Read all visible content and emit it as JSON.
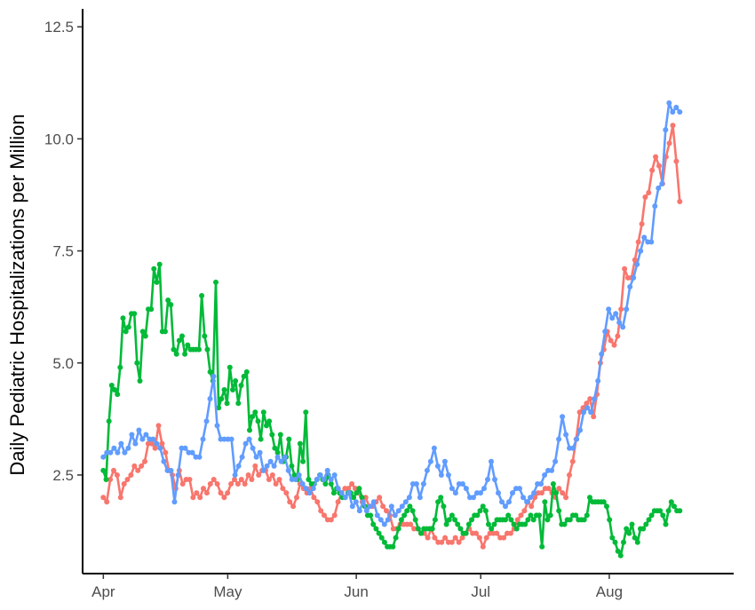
{
  "chart_data": {
    "type": "line",
    "title": "",
    "xlabel": "",
    "ylabel": "Daily Pediatric Hospitalizations per Million",
    "ylim": [
      0.3,
      12.9
    ],
    "y_ticks": [
      2.5,
      5.0,
      7.5,
      10.0,
      12.5
    ],
    "y_tick_labels": [
      "2.5",
      "5.0",
      "7.5",
      "10.0",
      "12.5"
    ],
    "x_ticks": [
      "2021-04-01",
      "2021-05-01",
      "2021-06-01",
      "2021-07-01",
      "2021-08-01"
    ],
    "x_tick_labels": [
      "Apr",
      "May",
      "Jun",
      "Jul",
      "Aug"
    ],
    "xlim": [
      "2021-03-27",
      "2021-08-31"
    ],
    "grid": false,
    "legend": "none",
    "start_date": "2021-04-01",
    "series": [
      {
        "color": "#F8766D",
        "values": [
          2.0,
          1.9,
          2.4,
          2.6,
          2.5,
          2.0,
          2.3,
          2.4,
          2.5,
          2.7,
          2.6,
          2.7,
          2.8,
          3.2,
          3.2,
          3.1,
          3.6,
          3.2,
          3.0,
          2.6,
          2.5,
          2.2,
          2.6,
          2.3,
          2.4,
          2.4,
          2.0,
          2.1,
          2.0,
          2.2,
          2.1,
          2.3,
          2.4,
          2.3,
          2.1,
          2.0,
          2.1,
          2.3,
          2.4,
          2.3,
          2.4,
          2.3,
          2.5,
          2.4,
          2.7,
          2.5,
          2.6,
          2.6,
          2.4,
          2.5,
          2.3,
          2.4,
          2.2,
          2.1,
          1.9,
          1.8,
          2.0,
          2.3,
          2.2,
          2.1,
          2.2,
          2.0,
          1.9,
          1.7,
          1.6,
          1.5,
          1.5,
          1.6,
          1.9,
          2.1,
          2.2,
          2.2,
          2.3,
          2.2,
          2.1,
          1.9,
          2.0,
          1.8,
          1.8,
          1.9,
          2.0,
          1.8,
          1.7,
          1.6,
          1.3,
          1.3,
          1.4,
          1.4,
          1.4,
          1.4,
          1.3,
          1.3,
          1.2,
          1.2,
          1.1,
          1.3,
          1.1,
          1.0,
          1.0,
          1.1,
          1.0,
          1.0,
          1.1,
          1.0,
          1.1,
          1.2,
          1.3,
          1.2,
          1.2,
          1.1,
          0.9,
          1.1,
          1.2,
          1.2,
          1.2,
          1.1,
          1.1,
          1.2,
          1.2,
          1.3,
          1.5,
          1.6,
          1.7,
          1.9,
          1.8,
          2.0,
          2.1,
          2.1,
          2.2,
          2.2,
          2.1,
          2.0,
          2.2,
          2.1,
          2.0,
          2.5,
          2.8,
          3.3,
          3.9,
          4.0,
          4.1,
          4.2,
          3.8,
          4.3,
          5.0,
          5.3,
          5.7,
          5.5,
          5.4,
          5.6,
          6.2,
          7.1,
          6.9,
          6.9,
          7.3,
          7.7,
          8.1,
          8.7,
          8.8,
          9.3,
          9.6,
          9.4,
          9.0,
          9.6,
          9.9,
          10.3,
          9.5,
          8.6
        ]
      },
      {
        "color": "#00BA38",
        "values": [
          2.6,
          2.4,
          3.7,
          4.5,
          4.4,
          4.3,
          4.9,
          6.0,
          5.7,
          5.8,
          6.1,
          6.1,
          5.0,
          4.6,
          5.7,
          5.6,
          6.2,
          6.2,
          7.1,
          6.8,
          7.2,
          5.7,
          5.7,
          6.4,
          6.3,
          5.3,
          5.2,
          5.5,
          5.6,
          5.2,
          5.4,
          5.3,
          5.3,
          5.3,
          5.3,
          6.5,
          5.6,
          5.3,
          4.8,
          4.6,
          6.8,
          4.0,
          4.2,
          4.4,
          4.1,
          4.9,
          4.4,
          4.6,
          4.1,
          4.5,
          4.7,
          4.8,
          3.5,
          3.8,
          3.9,
          3.7,
          3.3,
          3.9,
          3.6,
          3.7,
          3.4,
          3.1,
          3.0,
          3.4,
          2.8,
          2.9,
          3.3,
          2.7,
          2.5,
          2.4,
          3.2,
          2.8,
          3.9,
          2.4,
          2.3,
          2.3,
          2.4,
          2.5,
          2.4,
          2.3,
          2.5,
          2.3,
          2.1,
          2.2,
          2.1,
          2.0,
          2.0,
          2.1,
          2.1,
          2.0,
          2.1,
          2.2,
          2.0,
          1.8,
          1.6,
          1.6,
          1.4,
          1.3,
          1.2,
          1.1,
          1.0,
          0.9,
          0.9,
          0.9,
          1.1,
          1.3,
          1.5,
          1.6,
          1.7,
          1.8,
          1.7,
          1.5,
          1.3,
          1.2,
          1.3,
          1.3,
          1.3,
          1.3,
          1.5,
          1.9,
          2.0,
          1.8,
          1.4,
          1.5,
          1.6,
          1.5,
          1.4,
          1.3,
          1.2,
          1.2,
          1.4,
          1.5,
          1.6,
          1.6,
          1.7,
          1.8,
          1.7,
          1.4,
          1.3,
          1.4,
          1.5,
          1.5,
          1.5,
          1.5,
          1.6,
          1.5,
          1.4,
          1.3,
          1.4,
          1.4,
          1.4,
          1.5,
          1.6,
          1.5,
          1.6,
          1.6,
          0.9,
          1.9,
          1.5,
          1.6,
          2.3,
          2.1,
          1.7,
          1.4,
          1.4,
          1.5,
          1.5,
          1.6,
          1.6,
          1.5,
          1.5,
          1.5,
          1.6,
          2.0,
          1.9,
          1.9,
          1.9,
          1.9,
          1.9,
          1.8,
          1.5,
          1.1,
          1.0,
          0.8,
          0.7,
          1.0,
          1.3,
          1.2,
          1.4,
          1.1,
          1.0,
          1.3,
          1.3,
          1.4,
          1.5,
          1.6,
          1.7,
          1.7,
          1.7,
          1.6,
          1.4,
          1.7,
          1.9,
          1.8,
          1.7,
          1.7
        ]
      },
      {
        "color": "#619CFF",
        "values": [
          2.9,
          3.0,
          3.0,
          3.1,
          3.0,
          3.2,
          3.0,
          3.1,
          3.4,
          3.2,
          3.5,
          3.3,
          3.4,
          3.3,
          3.3,
          3.2,
          3.1,
          2.8,
          2.6,
          2.6,
          1.9,
          2.5,
          3.1,
          3.1,
          3.0,
          3.0,
          2.9,
          2.9,
          3.3,
          3.7,
          4.2,
          4.7,
          3.6,
          3.3,
          3.3,
          3.3,
          3.3,
          2.5,
          2.7,
          2.9,
          3.2,
          3.3,
          3.1,
          2.9,
          3.0,
          2.6,
          2.7,
          2.8,
          2.7,
          2.9,
          2.8,
          2.9,
          2.6,
          2.4,
          2.4,
          2.5,
          2.3,
          2.2,
          2.1,
          2.2,
          2.4,
          2.5,
          2.4,
          2.6,
          2.4,
          2.5,
          2.2,
          2.1,
          2.0,
          2.1,
          1.8,
          1.9,
          1.7,
          1.9,
          1.7,
          1.8,
          1.9,
          1.6,
          1.5,
          1.4,
          1.5,
          1.8,
          1.6,
          1.7,
          1.8,
          1.9,
          2.0,
          2.3,
          2.3,
          2.0,
          2.3,
          2.6,
          2.8,
          3.1,
          2.7,
          2.5,
          2.8,
          2.5,
          2.2,
          2.1,
          2.3,
          2.3,
          2.2,
          2.0,
          2.0,
          2.1,
          2.1,
          2.2,
          2.4,
          2.8,
          2.4,
          2.1,
          1.9,
          1.8,
          1.9,
          2.1,
          2.2,
          2.2,
          2.0,
          1.9,
          2.0,
          2.1,
          2.3,
          2.3,
          2.5,
          2.6,
          2.6,
          2.8,
          3.3,
          3.8,
          3.4,
          3.1,
          3.1,
          3.3,
          3.5,
          3.9,
          4.0,
          3.9,
          4.2,
          4.6,
          5.2,
          5.7,
          6.2,
          6.0,
          6.1,
          5.9,
          5.8,
          6.2,
          6.7,
          6.9,
          7.2,
          7.5,
          7.8,
          7.7,
          7.7,
          8.5,
          8.9,
          9.0,
          10.2,
          10.8,
          10.6,
          10.7,
          10.6
        ]
      }
    ]
  }
}
